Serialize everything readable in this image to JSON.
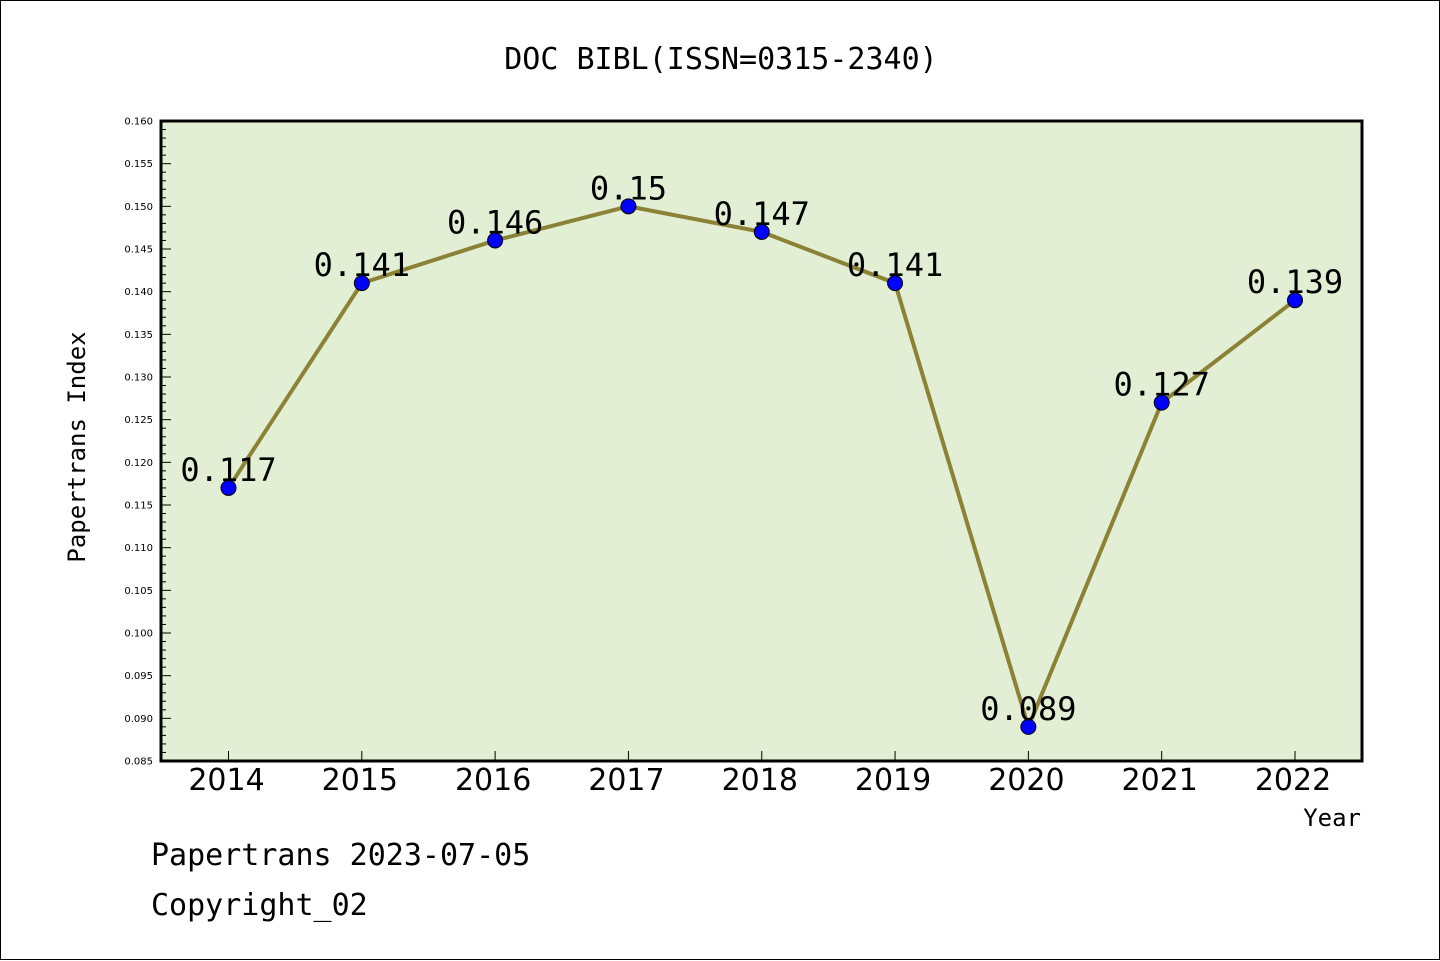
{
  "chart_data": {
    "type": "line",
    "title": "DOC BIBL(ISSN=0315-2340)",
    "xlabel": "Year",
    "ylabel": "Papertrans Index",
    "categories": [
      "2014",
      "2015",
      "2016",
      "2017",
      "2018",
      "2019",
      "2020",
      "2021",
      "2022"
    ],
    "series": [
      {
        "values": [
          0.117,
          0.141,
          0.146,
          0.15,
          0.147,
          0.141,
          0.089,
          0.127,
          0.139
        ],
        "data_labels": [
          "0.117",
          "0.141",
          "0.146",
          "0.15",
          "0.147",
          "0.141",
          "0.089",
          "0.127",
          "0.139"
        ]
      }
    ],
    "ylim": [
      0.085,
      0.16
    ],
    "yticks": [
      "0.085",
      "0.090",
      "0.095",
      "0.100",
      "0.105",
      "0.110",
      "0.115",
      "0.120",
      "0.125",
      "0.130",
      "0.135",
      "0.140",
      "0.145",
      "0.150",
      "0.155",
      "0.160"
    ],
    "grid": false,
    "legend": "none",
    "colors": {
      "plot_background": "#e2efd4",
      "line": "#8b8236",
      "marker": "#0000ff"
    }
  },
  "footer": {
    "date_line": "Papertrans 2023-07-05",
    "copyright": "Copyright_02"
  }
}
